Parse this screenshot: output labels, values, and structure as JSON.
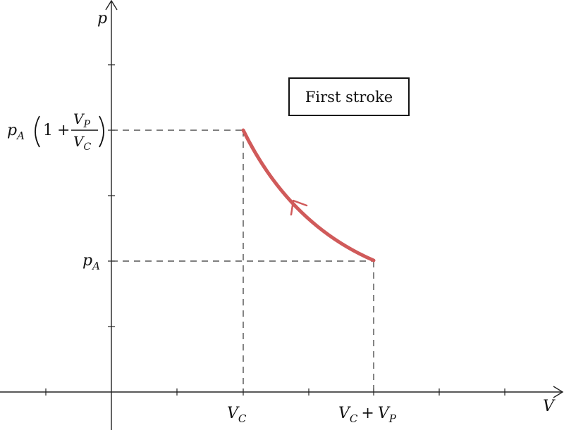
{
  "axes": {
    "x_label": "V",
    "y_label": "p"
  },
  "points": {
    "start": {
      "volume": "V_C + V_P",
      "pressure": "p_A"
    },
    "end": {
      "volume": "V_C",
      "pressure": "p_A(1 + V_P/V_C)"
    }
  },
  "x_ticks": [
    {
      "main": "V",
      "sub": "C"
    },
    {
      "main": "V",
      "sub": "C",
      "op": "+",
      "main2": "V",
      "sub2": "P"
    }
  ],
  "y_ticks": {
    "low": {
      "main": "p",
      "sub": "A"
    },
    "high": {
      "main": "p",
      "sub": "A",
      "one": "1",
      "plus": "+",
      "num_main": "V",
      "num_sub": "P",
      "den_main": "V",
      "den_sub": "C"
    }
  },
  "curve": {
    "color": "#d05a5a",
    "direction": "from (V_C + V_P, p_A) to (V_C, p_A(1 + V_P/V_C))"
  },
  "annotation": {
    "text": "First stroke"
  }
}
